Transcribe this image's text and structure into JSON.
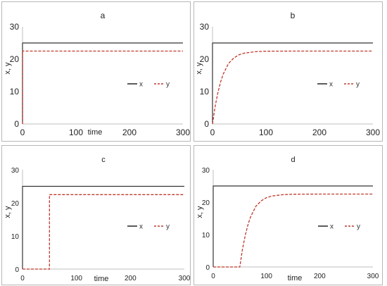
{
  "colors": {
    "x": "#333333",
    "y": "#c0392b",
    "frame": "#b7b7b7",
    "axis": "#bfbfbf"
  },
  "chart_data": [
    {
      "type": "line",
      "title": "a",
      "xlabel": "time",
      "ylabel": "x, y",
      "xlim": [
        0,
        300
      ],
      "ylim": [
        0,
        30
      ],
      "xticks": [
        0,
        100,
        200,
        300
      ],
      "yticks": [
        0,
        10,
        20,
        30
      ],
      "legend_position": "center-right",
      "grid": false,
      "series": [
        {
          "name": "x",
          "style": "solid",
          "x": [
            0,
            0,
            300
          ],
          "y": [
            0,
            25,
            25
          ]
        },
        {
          "name": "y",
          "style": "dashed",
          "x": [
            0,
            0,
            300
          ],
          "y": [
            0,
            22.5,
            22.5
          ]
        }
      ]
    },
    {
      "type": "line",
      "title": "b",
      "xlabel": "",
      "ylabel": "x, y",
      "xlim": [
        0,
        300
      ],
      "ylim": [
        0,
        30
      ],
      "xticks": [
        0,
        100,
        200,
        300
      ],
      "yticks": [
        0,
        10,
        20,
        30
      ],
      "legend_position": "center-right",
      "grid": false,
      "series": [
        {
          "name": "x",
          "style": "solid",
          "x": [
            0,
            0,
            300
          ],
          "y": [
            0,
            25,
            25
          ]
        },
        {
          "name": "y",
          "style": "dashed",
          "x": [
            0,
            5,
            10,
            15,
            20,
            30,
            40,
            50,
            60,
            80,
            100,
            150,
            200,
            300
          ],
          "y": [
            0,
            5.5,
            9.6,
            12.9,
            15.4,
            18.7,
            20.4,
            21.4,
            21.9,
            22.3,
            22.45,
            22.5,
            22.5,
            22.5
          ]
        }
      ]
    },
    {
      "type": "line",
      "title": "c",
      "xlabel": "time",
      "ylabel": "x, y",
      "xlim": [
        0,
        300
      ],
      "ylim": [
        0,
        30
      ],
      "xticks": [
        0,
        100,
        200,
        300
      ],
      "yticks": [
        0,
        10,
        20,
        30
      ],
      "legend_position": "center-right",
      "grid": false,
      "series": [
        {
          "name": "x",
          "style": "solid",
          "x": [
            0,
            0,
            300
          ],
          "y": [
            0,
            25,
            25
          ]
        },
        {
          "name": "y",
          "style": "dashed",
          "x": [
            0,
            50,
            50,
            300
          ],
          "y": [
            0,
            0,
            22.5,
            22.5
          ]
        }
      ]
    },
    {
      "type": "line",
      "title": "d",
      "xlabel": "time",
      "ylabel": "x, y",
      "xlim": [
        0,
        300
      ],
      "ylim": [
        0,
        30
      ],
      "xticks": [
        0,
        100,
        200,
        300
      ],
      "yticks": [
        0,
        10,
        20,
        30
      ],
      "legend_position": "center-right",
      "grid": false,
      "series": [
        {
          "name": "x",
          "style": "solid",
          "x": [
            0,
            0,
            300
          ],
          "y": [
            0,
            25,
            25
          ]
        },
        {
          "name": "y",
          "style": "dashed",
          "x": [
            0,
            50,
            55,
            60,
            65,
            70,
            80,
            90,
            100,
            110,
            130,
            150,
            200,
            300
          ],
          "y": [
            0,
            0,
            5.5,
            9.6,
            12.9,
            15.4,
            18.7,
            20.4,
            21.4,
            21.9,
            22.3,
            22.45,
            22.5,
            22.5
          ]
        }
      ]
    }
  ]
}
